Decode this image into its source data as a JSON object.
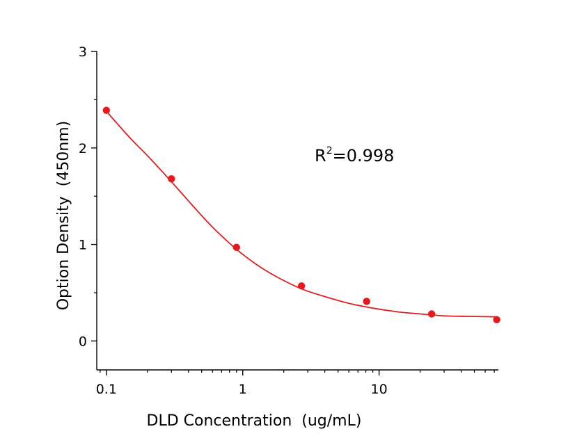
{
  "chart_data": {
    "type": "scatter",
    "xlabel": "DLD Concentration  (ug/mL)",
    "ylabel": "Option Density  (450nm)",
    "xscale": "log",
    "xlim": [
      0.085,
      75
    ],
    "ylim": [
      -0.3,
      3
    ],
    "x_ticks": [
      0.1,
      1,
      10
    ],
    "x_tick_labels": [
      "0.1",
      "1",
      "10"
    ],
    "y_ticks": [
      0,
      1,
      2,
      3
    ],
    "y_tick_labels": [
      "0",
      "1",
      "2",
      "3"
    ],
    "grid": false,
    "points": {
      "x": [
        0.1,
        0.3,
        0.9,
        2.7,
        8.1,
        24.3,
        72.9
      ],
      "y": [
        2.39,
        1.68,
        0.97,
        0.57,
        0.41,
        0.28,
        0.22
      ]
    },
    "fit": {
      "x": [
        0.1,
        0.15,
        0.2,
        0.3,
        0.45,
        0.6,
        0.9,
        1.3,
        1.8,
        2.7,
        4,
        6,
        9,
        14,
        20,
        30,
        45,
        72.9
      ],
      "y": [
        2.38,
        2.1,
        1.92,
        1.65,
        1.37,
        1.18,
        0.95,
        0.78,
        0.66,
        0.54,
        0.46,
        0.39,
        0.34,
        0.3,
        0.28,
        0.26,
        0.255,
        0.25
      ]
    },
    "annotation": {
      "base": "R",
      "sup": "2",
      "value": "=0.998",
      "position": "upper-right"
    },
    "colors": {
      "series": "#e8191c",
      "fit": "#e02020",
      "axis": "#000000"
    }
  }
}
